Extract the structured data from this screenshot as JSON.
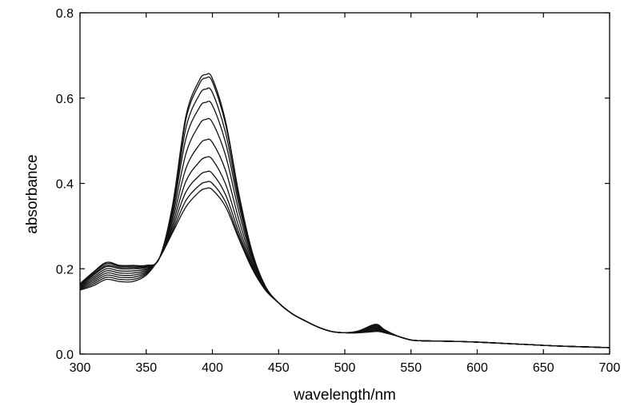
{
  "chart_data": {
    "type": "line",
    "title": "",
    "xlabel": "wavelength/nm",
    "ylabel": "absorbance",
    "xlim": [
      300,
      700
    ],
    "ylim": [
      0.0,
      0.8
    ],
    "xticks": [
      "300",
      "350",
      "400",
      "450",
      "500",
      "550",
      "600",
      "650",
      "700"
    ],
    "yticks": [
      "0.0",
      "0.2",
      "0.4",
      "0.6",
      "0.8"
    ],
    "grid": false,
    "legend": "none",
    "x": [
      300,
      310,
      320,
      330,
      340,
      350,
      360,
      370,
      380,
      390,
      395,
      400,
      410,
      420,
      430,
      440,
      450,
      460,
      470,
      480,
      490,
      500,
      510,
      520,
      525,
      530,
      540,
      550,
      560,
      580,
      600,
      620,
      640,
      660,
      680,
      700
    ],
    "series": [
      {
        "values": [
          0.15,
          0.16,
          0.175,
          0.17,
          0.17,
          0.185,
          0.225,
          0.285,
          0.345,
          0.38,
          0.388,
          0.385,
          0.345,
          0.27,
          0.2,
          0.15,
          0.12,
          0.095,
          0.078,
          0.063,
          0.053,
          0.05,
          0.05,
          0.052,
          0.053,
          0.05,
          0.042,
          0.033,
          0.031,
          0.03,
          0.028,
          0.025,
          0.022,
          0.019,
          0.017,
          0.015
        ]
      },
      {
        "values": [
          0.152,
          0.164,
          0.18,
          0.175,
          0.175,
          0.188,
          0.225,
          0.29,
          0.36,
          0.395,
          0.403,
          0.4,
          0.356,
          0.276,
          0.202,
          0.151,
          0.12,
          0.095,
          0.078,
          0.063,
          0.053,
          0.05,
          0.05,
          0.053,
          0.055,
          0.051,
          0.042,
          0.033,
          0.031,
          0.03,
          0.028,
          0.025,
          0.022,
          0.019,
          0.017,
          0.015
        ]
      },
      {
        "values": [
          0.154,
          0.168,
          0.185,
          0.18,
          0.18,
          0.191,
          0.225,
          0.297,
          0.38,
          0.418,
          0.427,
          0.423,
          0.373,
          0.285,
          0.206,
          0.152,
          0.12,
          0.095,
          0.078,
          0.063,
          0.053,
          0.05,
          0.05,
          0.055,
          0.057,
          0.052,
          0.042,
          0.033,
          0.031,
          0.03,
          0.028,
          0.025,
          0.022,
          0.019,
          0.017,
          0.015
        ]
      },
      {
        "values": [
          0.156,
          0.172,
          0.19,
          0.185,
          0.185,
          0.194,
          0.225,
          0.305,
          0.405,
          0.45,
          0.461,
          0.456,
          0.398,
          0.298,
          0.211,
          0.153,
          0.12,
          0.095,
          0.078,
          0.063,
          0.053,
          0.05,
          0.051,
          0.057,
          0.059,
          0.053,
          0.042,
          0.033,
          0.031,
          0.03,
          0.028,
          0.025,
          0.022,
          0.019,
          0.017,
          0.015
        ]
      },
      {
        "values": [
          0.158,
          0.176,
          0.195,
          0.19,
          0.19,
          0.197,
          0.225,
          0.315,
          0.435,
          0.49,
          0.502,
          0.496,
          0.43,
          0.315,
          0.217,
          0.154,
          0.12,
          0.095,
          0.078,
          0.063,
          0.053,
          0.05,
          0.051,
          0.059,
          0.061,
          0.054,
          0.042,
          0.033,
          0.031,
          0.03,
          0.028,
          0.025,
          0.022,
          0.019,
          0.017,
          0.015
        ]
      },
      {
        "values": [
          0.16,
          0.18,
          0.2,
          0.195,
          0.195,
          0.2,
          0.225,
          0.325,
          0.47,
          0.537,
          0.55,
          0.543,
          0.465,
          0.334,
          0.224,
          0.156,
          0.12,
          0.095,
          0.078,
          0.063,
          0.053,
          0.05,
          0.052,
          0.061,
          0.063,
          0.055,
          0.042,
          0.033,
          0.031,
          0.03,
          0.028,
          0.025,
          0.022,
          0.019,
          0.017,
          0.015
        ]
      },
      {
        "values": [
          0.162,
          0.184,
          0.205,
          0.2,
          0.2,
          0.203,
          0.225,
          0.335,
          0.505,
          0.577,
          0.59,
          0.583,
          0.495,
          0.35,
          0.23,
          0.157,
          0.12,
          0.095,
          0.078,
          0.063,
          0.053,
          0.05,
          0.052,
          0.063,
          0.065,
          0.056,
          0.042,
          0.033,
          0.031,
          0.03,
          0.028,
          0.025,
          0.022,
          0.019,
          0.017,
          0.015
        ]
      },
      {
        "values": [
          0.163,
          0.187,
          0.208,
          0.203,
          0.203,
          0.205,
          0.225,
          0.342,
          0.53,
          0.607,
          0.621,
          0.613,
          0.518,
          0.362,
          0.235,
          0.158,
          0.12,
          0.095,
          0.078,
          0.063,
          0.053,
          0.05,
          0.053,
          0.064,
          0.066,
          0.056,
          0.042,
          0.033,
          0.031,
          0.03,
          0.028,
          0.025,
          0.022,
          0.019,
          0.017,
          0.015
        ]
      },
      {
        "values": [
          0.164,
          0.19,
          0.212,
          0.206,
          0.206,
          0.207,
          0.225,
          0.348,
          0.55,
          0.632,
          0.647,
          0.638,
          0.538,
          0.372,
          0.239,
          0.159,
          0.12,
          0.095,
          0.078,
          0.063,
          0.053,
          0.05,
          0.053,
          0.066,
          0.068,
          0.057,
          0.042,
          0.033,
          0.031,
          0.03,
          0.028,
          0.025,
          0.022,
          0.019,
          0.017,
          0.015
        ]
      },
      {
        "values": [
          0.165,
          0.192,
          0.215,
          0.208,
          0.208,
          0.208,
          0.225,
          0.351,
          0.558,
          0.641,
          0.655,
          0.646,
          0.545,
          0.376,
          0.24,
          0.159,
          0.12,
          0.095,
          0.078,
          0.063,
          0.053,
          0.05,
          0.054,
          0.067,
          0.069,
          0.057,
          0.042,
          0.033,
          0.031,
          0.03,
          0.028,
          0.025,
          0.022,
          0.019,
          0.017,
          0.015
        ]
      }
    ]
  }
}
